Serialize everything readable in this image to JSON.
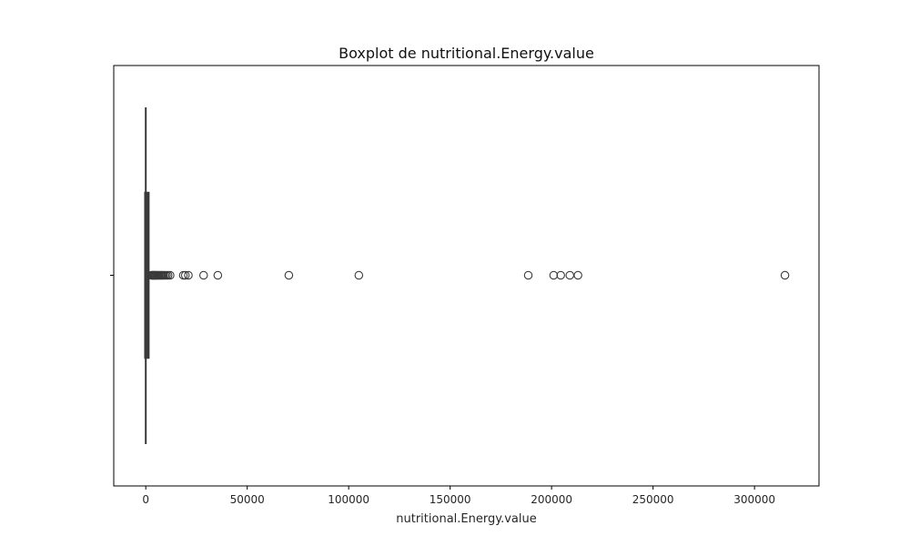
{
  "chart_data": {
    "type": "boxplot",
    "title": "Boxplot de nutritional.Energy.value",
    "xlabel": "nutritional.Energy.value",
    "ylabel": "",
    "xlim": [
      -15780,
      331780
    ],
    "xticks": [
      0,
      50000,
      100000,
      150000,
      200000,
      250000,
      300000
    ],
    "xtick_labels": [
      "0",
      "50000",
      "100000",
      "150000",
      "200000",
      "250000",
      "300000"
    ],
    "grid": false,
    "legend": "none",
    "box": {
      "whisker_low": 0,
      "q1": 0,
      "median": 500,
      "q3": 1100,
      "whisker_high": 2700
    },
    "outliers": [
      2800,
      3100,
      3400,
      3700,
      4000,
      4300,
      4600,
      5000,
      5400,
      5800,
      6200,
      6700,
      7200,
      7700,
      8200,
      8800,
      9500,
      10200,
      11000,
      12000,
      18500,
      19500,
      21000,
      28500,
      35500,
      70500,
      105000,
      188500,
      201000,
      204500,
      209000,
      213000,
      315000
    ],
    "colors": {
      "box_edge": "#3a3a3a",
      "outlier_edge": "#3a3a3a",
      "axes": "#000000",
      "background": "#ffffff"
    }
  }
}
